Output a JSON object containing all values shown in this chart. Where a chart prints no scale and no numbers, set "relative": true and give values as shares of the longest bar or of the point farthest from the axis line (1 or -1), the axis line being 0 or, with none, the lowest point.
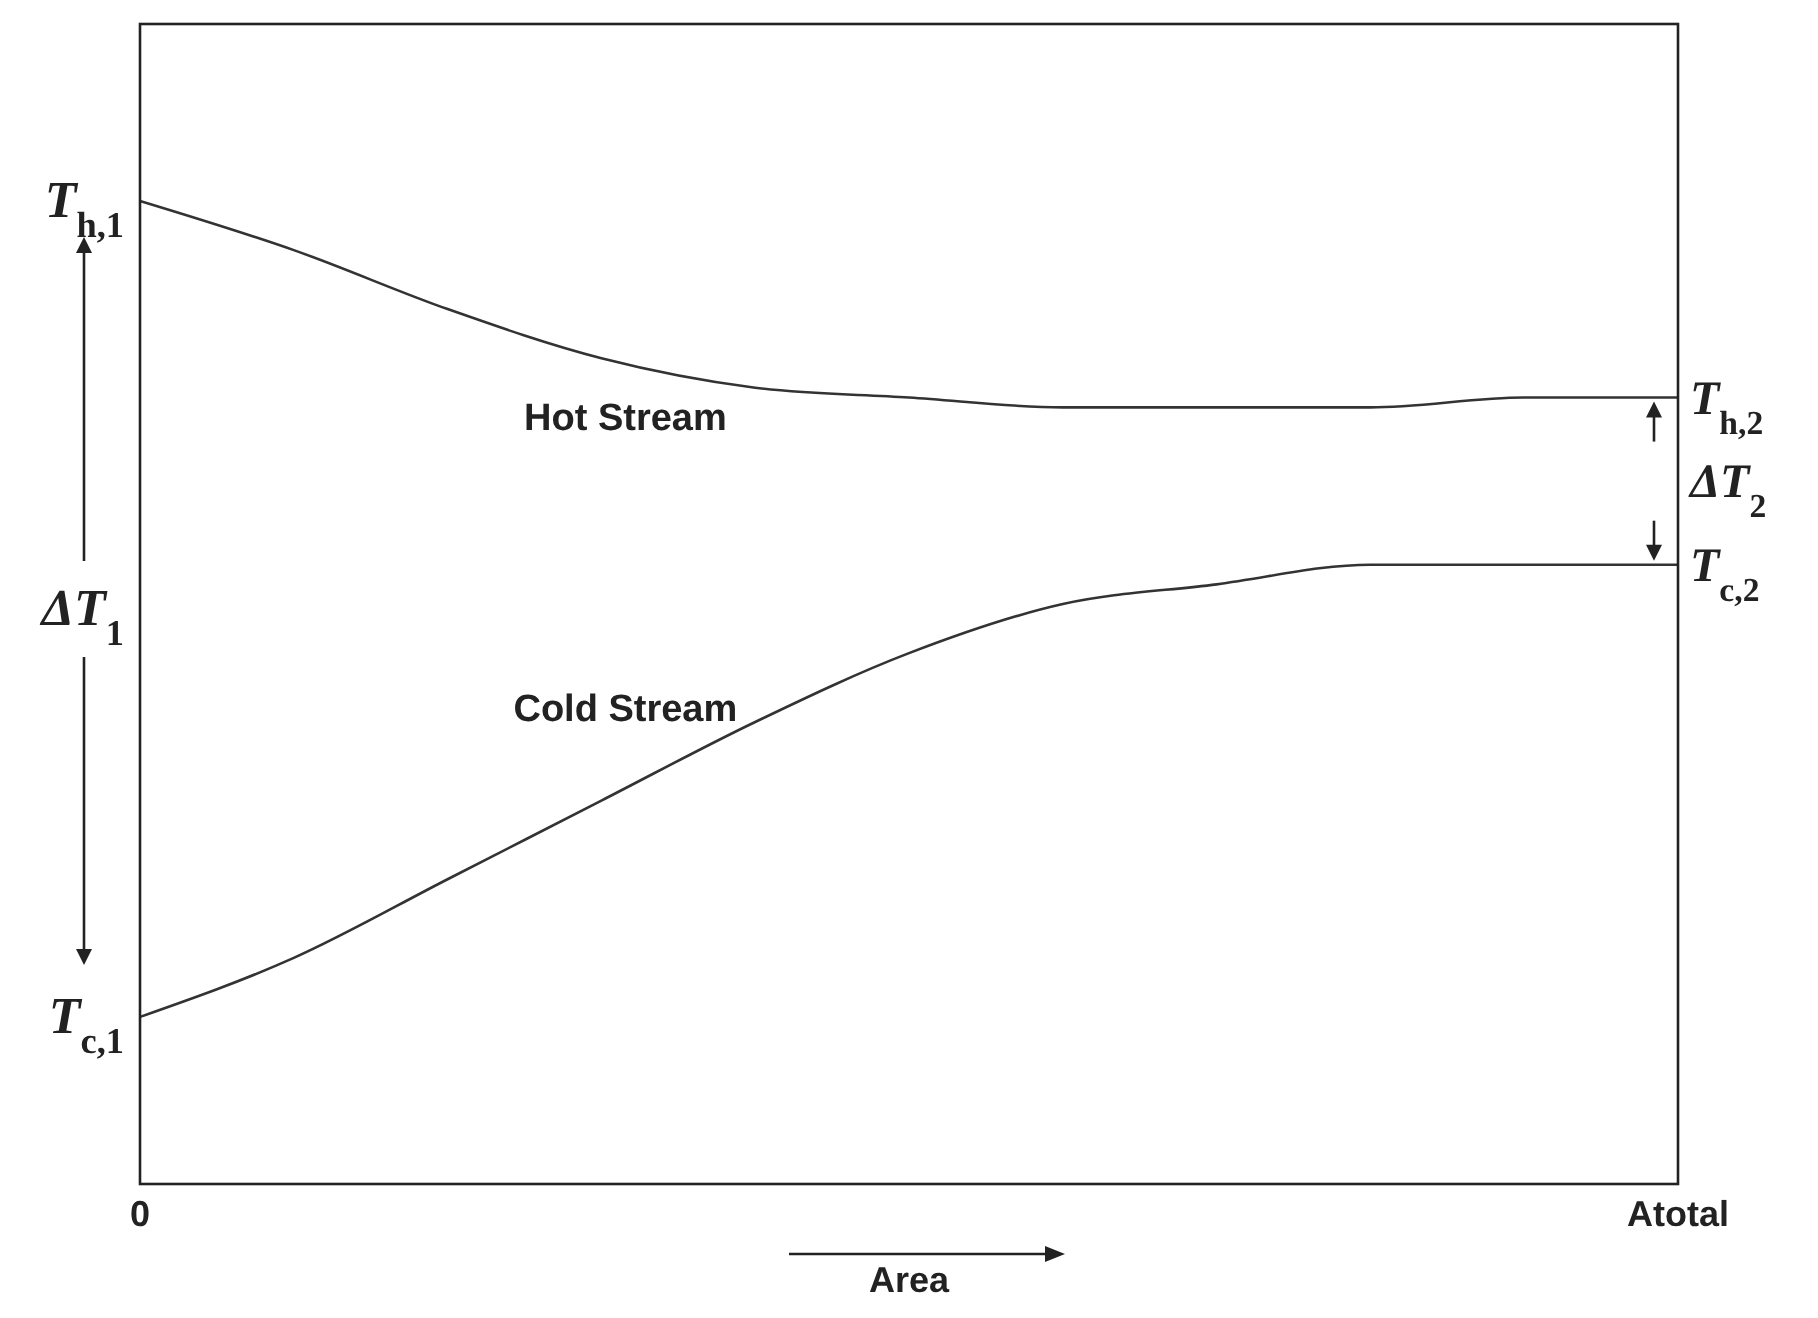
{
  "chart_data": {
    "type": "line",
    "relative": true,
    "xlabel": "Area",
    "categories": [
      "0",
      null,
      null,
      null,
      null,
      null,
      null,
      null,
      null,
      null,
      "Atotal"
    ],
    "series": [
      {
        "name": "Hot Stream",
        "color": "#333333",
        "values": [
          1,
          0.95,
          0.89,
          0.84,
          0.81,
          0.8,
          0.79,
          0.79,
          0.79,
          0.8,
          0.8
        ]
      },
      {
        "name": "Cold Stream",
        "color": "#333333",
        "values": [
          0.17,
          0.23,
          0.31,
          0.39,
          0.47,
          0.54,
          0.59,
          0.61,
          0.63,
          0.63,
          0.63
        ]
      }
    ],
    "annotations": [
      {
        "text": "T$_{h,1}$",
        "x": "0",
        "y": 1
      },
      "ΔT$_{1}$",
      {
        "text": "T$_{c,1}$",
        "x": "0",
        "y": 0.17
      },
      {
        "text": "T$_{h,2}$",
        "x": "Atotal",
        "y": 0.8
      },
      "ΔT$_{2}$",
      {
        "text": "T$_{c,2}$",
        "x": "Atotal",
        "y": 0.63
      }
    ]
  }
}
